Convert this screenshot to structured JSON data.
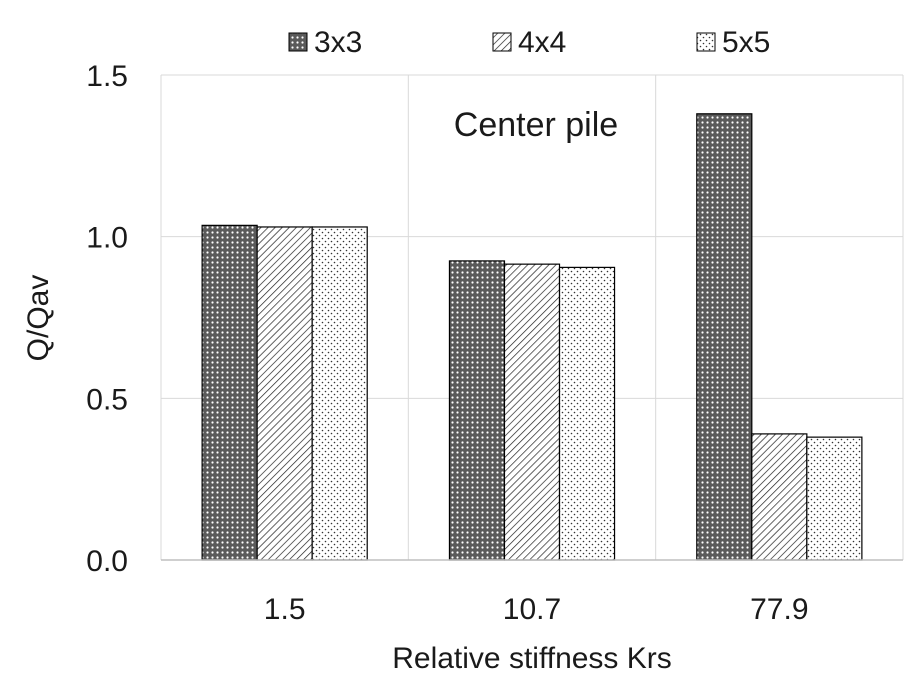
{
  "chart_data": {
    "type": "bar",
    "title": "",
    "annotation": "Center pile",
    "xlabel": "Relative stiffness Krs",
    "ylabel": "Q/Qav",
    "categories": [
      "1.5",
      "10.7",
      "77.9"
    ],
    "ylim": [
      0,
      1.5
    ],
    "yticks": [
      "0.0",
      "0.5",
      "1.0",
      "1.5"
    ],
    "series": [
      {
        "name": "3x3",
        "values": [
          1.035,
          0.925,
          1.38
        ]
      },
      {
        "name": "4x4",
        "values": [
          1.03,
          0.915,
          0.39
        ]
      },
      {
        "name": "5x5",
        "values": [
          1.03,
          0.905,
          0.38
        ]
      }
    ],
    "grid": true,
    "legend_position": "top"
  }
}
